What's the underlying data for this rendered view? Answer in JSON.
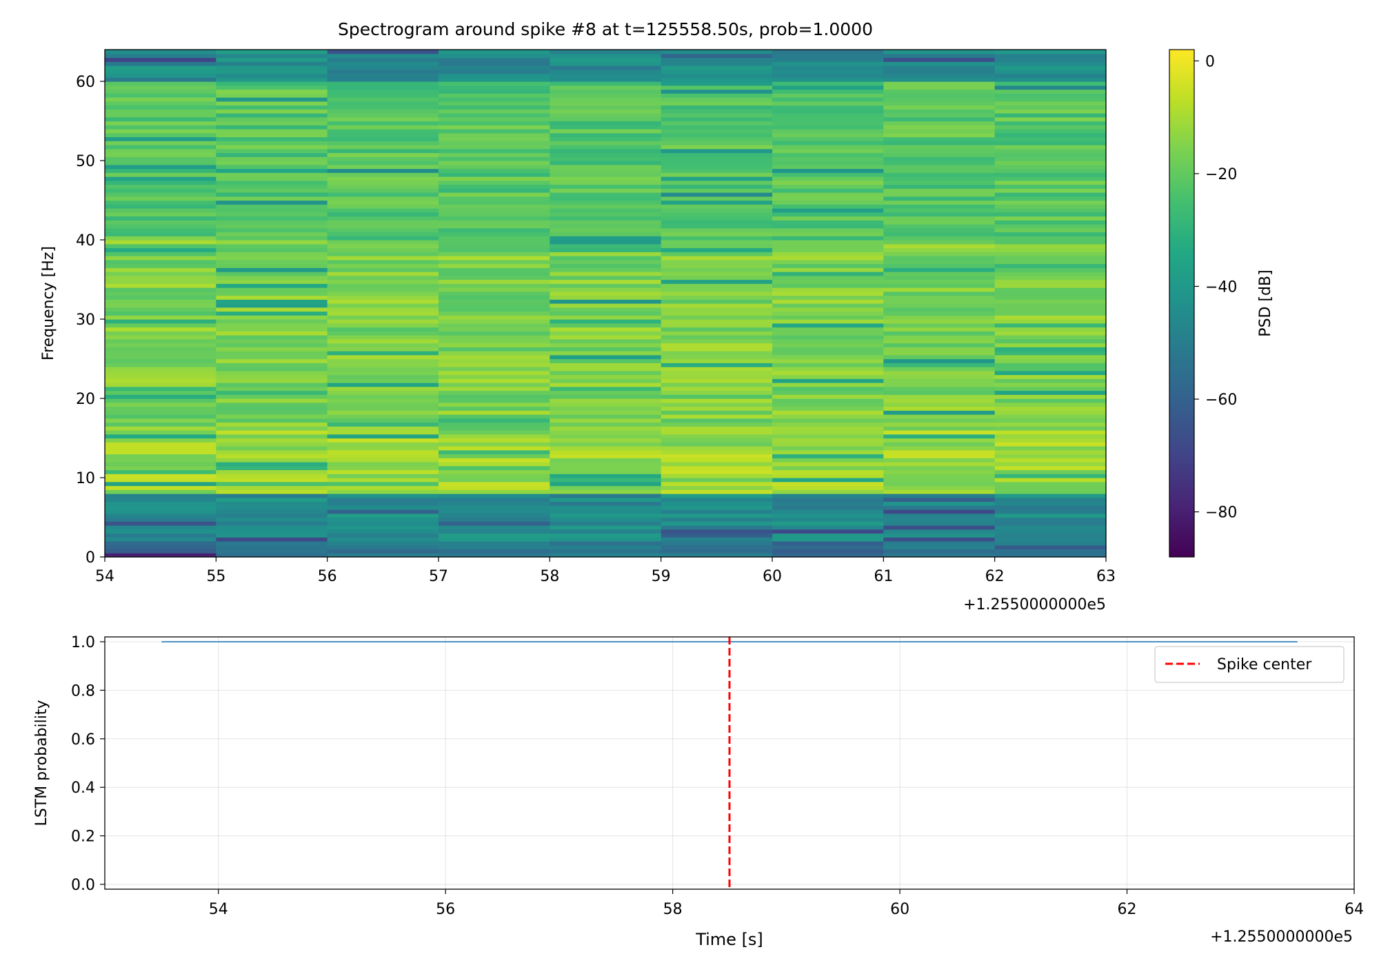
{
  "chart_data": [
    {
      "type": "heatmap",
      "title": "Spectrogram around spike #8 at t=125558.50s, prob=1.0000",
      "xlabel": "",
      "ylabel": "Frequency [Hz]",
      "xlim": [
        54,
        63
      ],
      "ylim": [
        0,
        64
      ],
      "x_offset_label": "+1.2550000000e5",
      "x_ticks": [
        "54",
        "55",
        "56",
        "57",
        "58",
        "59",
        "60",
        "61",
        "62",
        "63"
      ],
      "y_ticks": [
        "0",
        "10",
        "20",
        "30",
        "40",
        "50",
        "60"
      ],
      "colormap": "viridis",
      "colorbar": {
        "label": "PSD [dB]",
        "range": [
          -88,
          2
        ],
        "ticks": [
          "0",
          "−20",
          "−40",
          "−60",
          "−80"
        ]
      },
      "time_bins": [
        54,
        55,
        56,
        57,
        58,
        59,
        60,
        61,
        62
      ],
      "typical_profile_db": [
        {
          "freq_range": [
            0,
            2
          ],
          "db": -55
        },
        {
          "freq_range": [
            2,
            8
          ],
          "db": -45
        },
        {
          "freq_range": [
            8,
            16
          ],
          "db": -12
        },
        {
          "freq_range": [
            16,
            40
          ],
          "db": -16
        },
        {
          "freq_range": [
            40,
            60
          ],
          "db": -22
        },
        {
          "freq_range": [
            60,
            64
          ],
          "db": -45
        }
      ]
    },
    {
      "type": "line",
      "title": "",
      "xlabel": "Time [s]",
      "ylabel": "LSTM probability",
      "xlim": [
        53,
        64
      ],
      "ylim": [
        -0.02,
        1.02
      ],
      "x_offset_label": "+1.2550000000e5",
      "x_ticks": [
        "54",
        "56",
        "58",
        "60",
        "62",
        "64"
      ],
      "y_ticks": [
        "0.0",
        "0.2",
        "0.4",
        "0.6",
        "0.8",
        "1.0"
      ],
      "grid": true,
      "series": [
        {
          "x": [
            53.5,
            63.5
          ],
          "y": [
            1.0,
            1.0
          ],
          "color": "#1f77b4"
        }
      ],
      "vline": {
        "x": 58.5,
        "name": "Spike center",
        "color": "#ff0000",
        "style": "dashed"
      },
      "legend": {
        "position": "top-right",
        "entries": [
          "Spike center"
        ]
      }
    }
  ]
}
